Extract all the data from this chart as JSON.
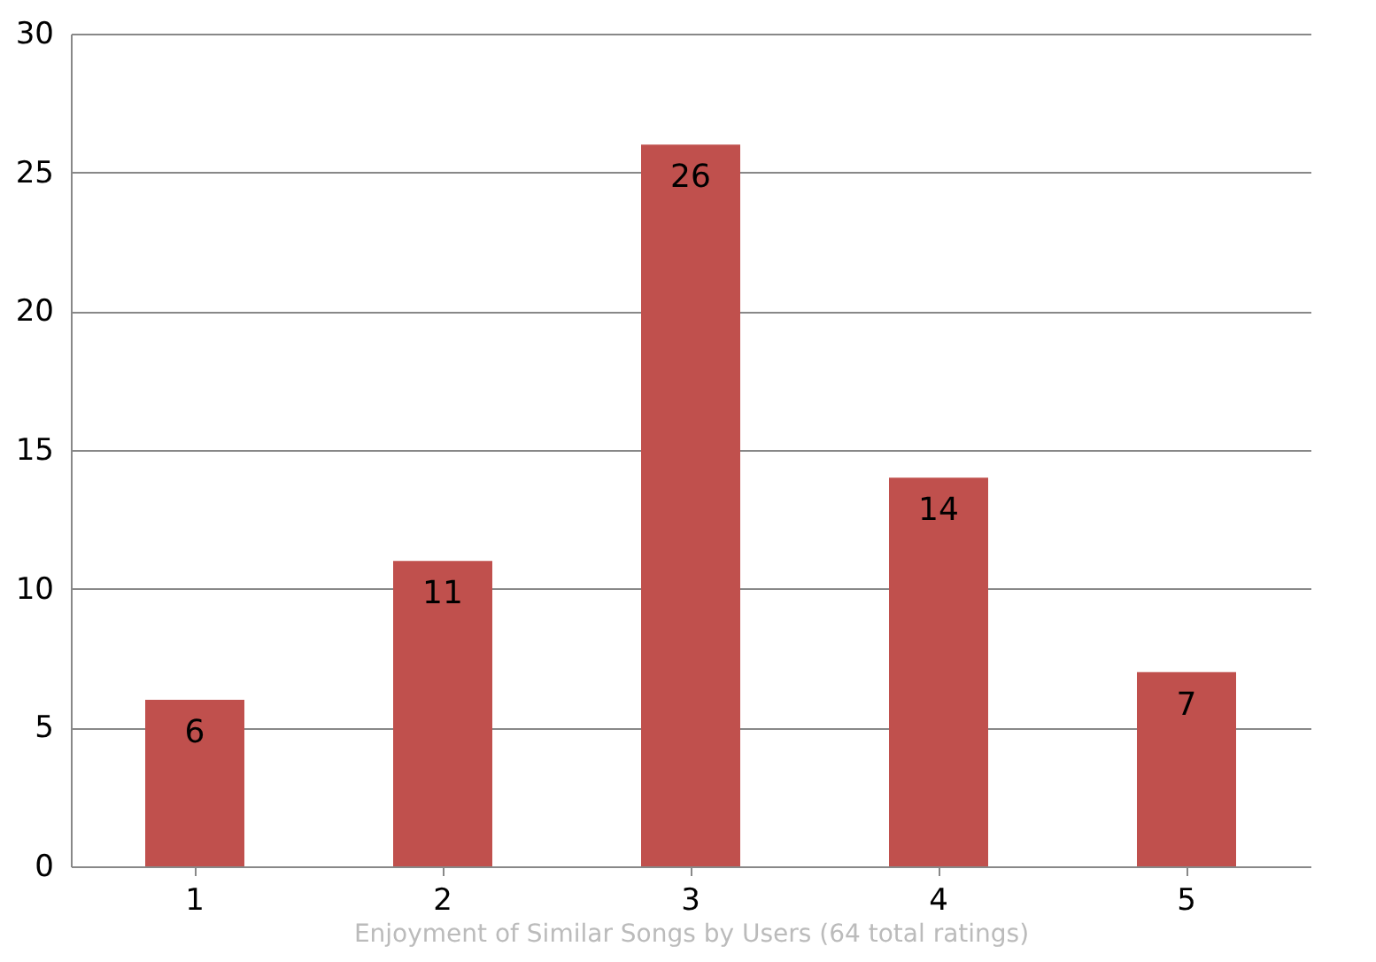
{
  "chart_data": {
    "type": "bar",
    "xlabel": "Enjoyment of Similar Songs by Users (64 total ratings)",
    "categories": [
      "1",
      "2",
      "3",
      "4",
      "5"
    ],
    "values": [
      6,
      11,
      26,
      14,
      7
    ],
    "color": "#c0504d",
    "ylim": [
      0,
      30
    ],
    "yticks": [
      0,
      5,
      10,
      15,
      20,
      25,
      30
    ],
    "grid": "y",
    "data_labels": true
  }
}
